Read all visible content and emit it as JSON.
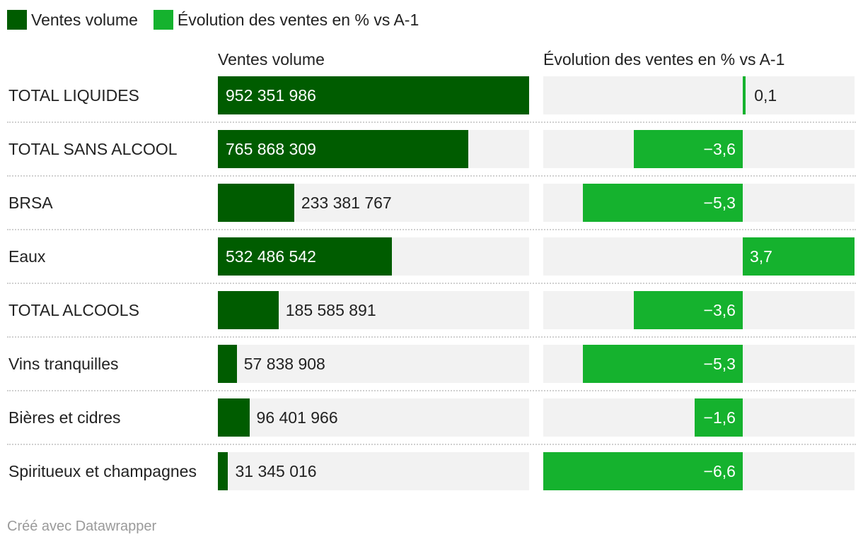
{
  "chart_data": {
    "type": "table",
    "legend": [
      {
        "label": "Ventes volume",
        "color": "#005c00"
      },
      {
        "label": "Évolution des ventes en % vs A-1",
        "color": "#15b22e"
      }
    ],
    "columns": [
      "Ventes volume",
      "Évolution des ventes en % vs A-1"
    ],
    "series": [
      {
        "name": "Ventes volume",
        "color": "#005c00",
        "range": [
          0,
          952351986
        ]
      },
      {
        "name": "Évolution des ventes en % vs A-1",
        "color": "#15b22e",
        "range": [
          -6.6,
          3.7
        ]
      }
    ],
    "rows": [
      {
        "category": "TOTAL LIQUIDES",
        "volume": 952351986,
        "volume_label": "952 351 986",
        "evolution": 0.1,
        "evolution_label": "0,1"
      },
      {
        "category": "TOTAL SANS ALCOOL",
        "volume": 765868309,
        "volume_label": "765 868 309",
        "evolution": -3.6,
        "evolution_label": "−3,6"
      },
      {
        "category": "BRSA",
        "volume": 233381767,
        "volume_label": "233 381 767",
        "evolution": -5.3,
        "evolution_label": "−5,3"
      },
      {
        "category": "Eaux",
        "volume": 532486542,
        "volume_label": "532 486 542",
        "evolution": 3.7,
        "evolution_label": "3,7"
      },
      {
        "category": "TOTAL ALCOOLS",
        "volume": 185585891,
        "volume_label": "185 585 891",
        "evolution": -3.6,
        "evolution_label": "−3,6"
      },
      {
        "category": "Vins tranquilles",
        "volume": 57838908,
        "volume_label": "57 838 908",
        "evolution": -5.3,
        "evolution_label": "−5,3"
      },
      {
        "category": "Bières et cidres",
        "volume": 96401966,
        "volume_label": "96 401 966",
        "evolution": -1.6,
        "evolution_label": "−1,6"
      },
      {
        "category": "Spiritueux et champagnes",
        "volume": 31345016,
        "volume_label": "31 345 016",
        "evolution": -6.6,
        "evolution_label": "−6,6"
      }
    ]
  },
  "footer": "Créé avec Datawrapper"
}
